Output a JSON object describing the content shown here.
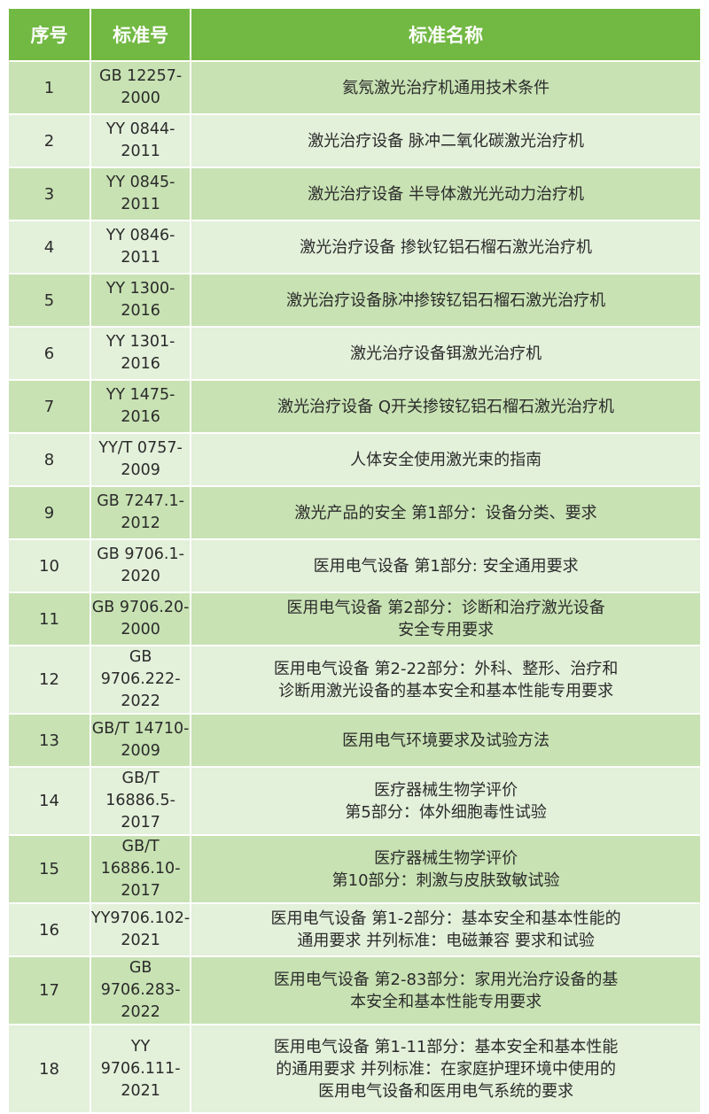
{
  "colors": {
    "header": "#72b943",
    "row_odd": "#c8e2b3",
    "row_even": "#e3f0da"
  },
  "headers": [
    "序号",
    "标准号",
    "标准名称"
  ],
  "rows": [
    {
      "no": "1",
      "code": "GB 12257-2000",
      "name": "氦氖激光治疗机通用技术条件"
    },
    {
      "no": "2",
      "code": "YY 0844-2011",
      "name": "激光治疗设备 脉冲二氧化碳激光治疗机"
    },
    {
      "no": "3",
      "code": "YY 0845-2011",
      "name": "激光治疗设备 半导体激光光动力治疗机"
    },
    {
      "no": "4",
      "code": "YY 0846-2011",
      "name": "激光治疗设备 掺钬钇铝石榴石激光治疗机"
    },
    {
      "no": "5",
      "code": "YY 1300-2016",
      "name": "激光治疗设备脉冲掺铵钇铝石榴石激光治疗机"
    },
    {
      "no": "6",
      "code": "YY 1301-2016",
      "name": "激光治疗设备铒激光治疗机"
    },
    {
      "no": "7",
      "code": "YY 1475-2016",
      "name": "激光治疗设备 Q开关掺铵钇铝石榴石激光治疗机"
    },
    {
      "no": "8",
      "code": "YY/T 0757-2009",
      "name": "人体安全使用激光束的指南"
    },
    {
      "no": "9",
      "code": "GB 7247.1-2012",
      "name": "激光产品的安全 第1部分：设备分类、要求"
    },
    {
      "no": "10",
      "code": "GB 9706.1-2020",
      "name": "医用电气设备 第1部分: 安全通用要求"
    },
    {
      "no": "11",
      "code": "GB 9706.20-2000",
      "name": "医用电气设备 第2部分：诊断和治疗激光设备\n安全专用要求"
    },
    {
      "no": "12",
      "code": "GB 9706.222-2022",
      "name": "医用电气设备 第2-22部分：外科、整形、治疗和\n诊断用激光设备的基本安全和基本性能专用要求"
    },
    {
      "no": "13",
      "code": "GB/T 14710-2009",
      "name": "医用电气环境要求及试验方法"
    },
    {
      "no": "14",
      "code": "GB/T 16886.5-2017",
      "name": "医疗器械生物学评价\n第5部分：体外细胞毒性试验"
    },
    {
      "no": "15",
      "code": "GB/T 16886.10-2017",
      "name": "医疗器械生物学评价\n第10部分：刺激与皮肤致敏试验"
    },
    {
      "no": "16",
      "code": "YY9706.102-2021",
      "name": "医用电气设备 第1-2部分：基本安全和基本性能的\n通用要求 并列标准：电磁兼容 要求和试验"
    },
    {
      "no": "17",
      "code": "GB 9706.283-2022",
      "name": "医用电气设备 第2-83部分：家用光治疗设备的基\n本安全和基本性能专用要求"
    },
    {
      "no": "18",
      "code": "YY 9706.111-2021",
      "name": "医用电气设备 第1-11部分：基本安全和基本性能\n的通用要求 并列标准：在家庭护理环境中使用的\n医用电气设备和医用电气系统的要求"
    }
  ]
}
